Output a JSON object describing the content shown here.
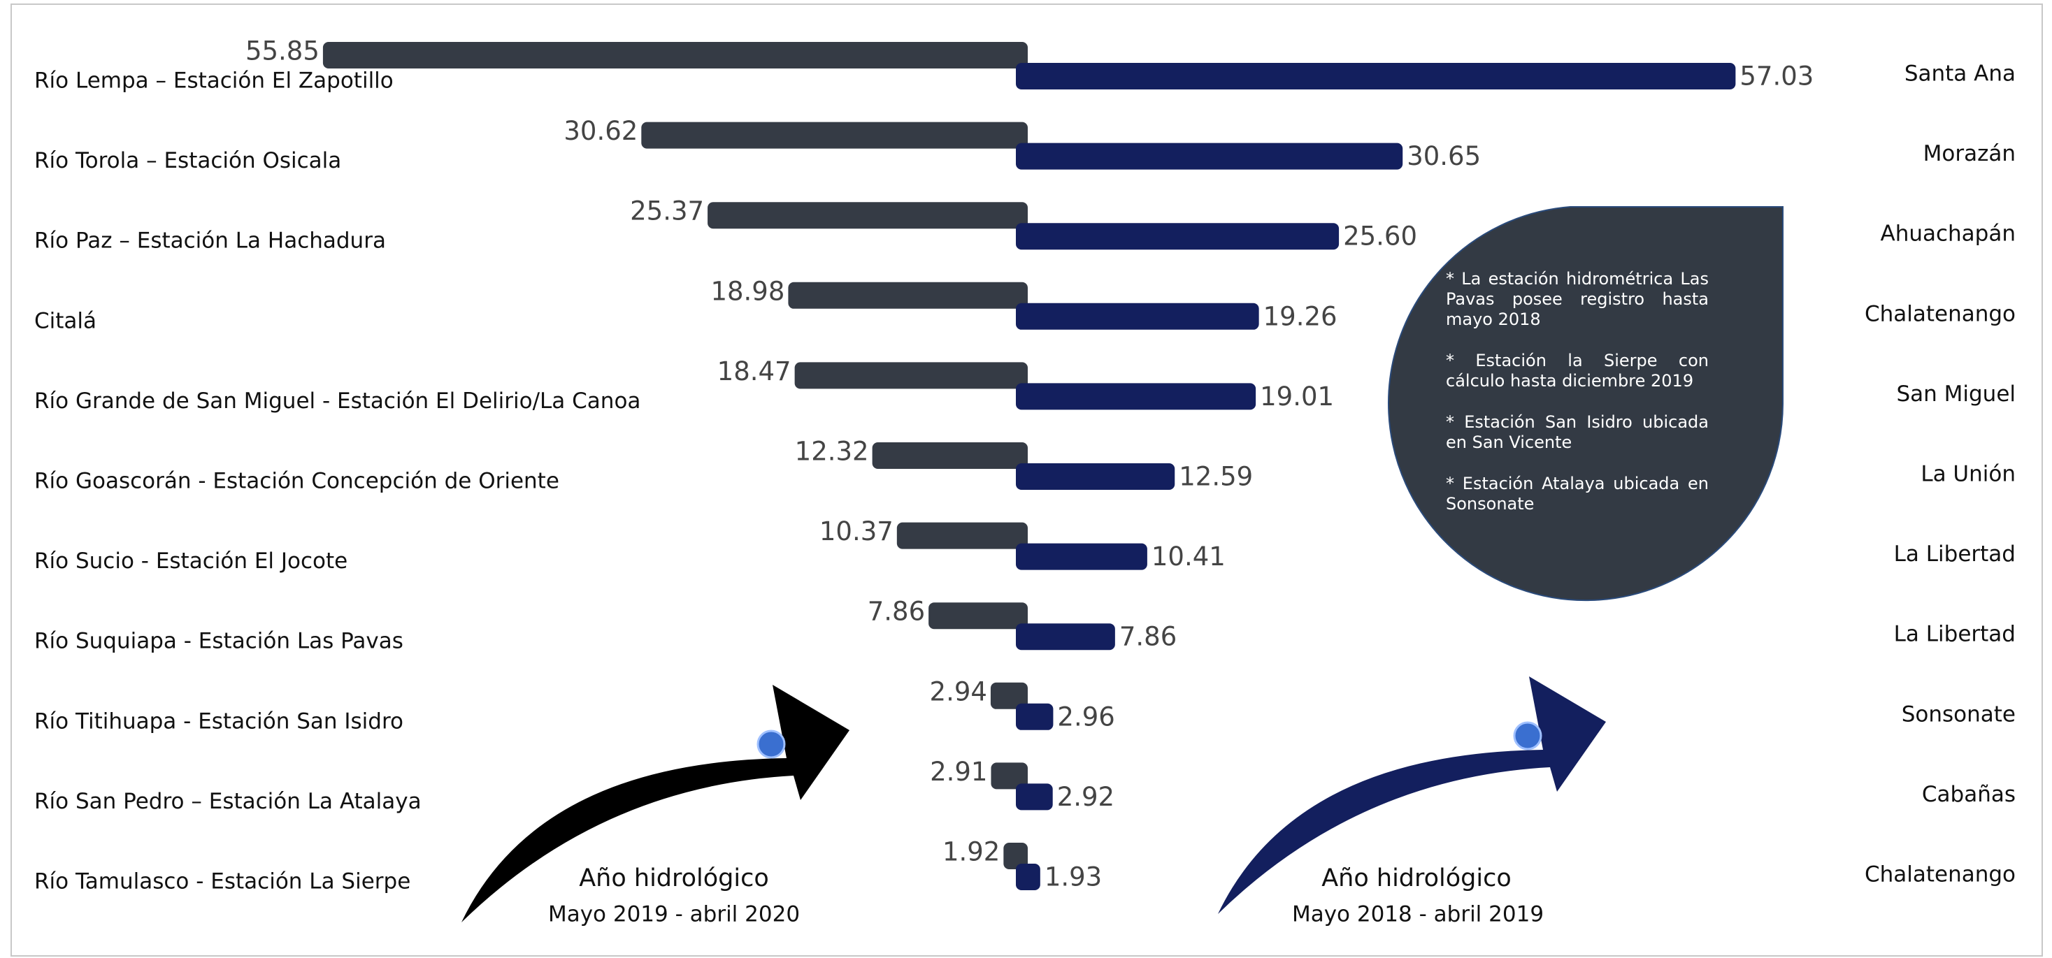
{
  "chart_data": {
    "type": "butterfly-bar",
    "categories": [
      "Río Lempa – Estación El Zapotillo",
      "Río Torola – Estación Osicala",
      "Río Paz – Estación La Hachadura",
      "Citalá",
      "Río Grande de San Miguel - Estación El Delirio/La Canoa",
      "Río Goascorán - Estación Concepción de Oriente",
      "Río Sucio - Estación El Jocote",
      "Río Suquiapa - Estación Las Pavas",
      "Río Titihuapa - Estación San Isidro",
      "Río San Pedro – Estación La Atalaya",
      "Río Tamulasco - Estación La Sierpe"
    ],
    "departments": [
      "Santa Ana",
      "Morazán",
      "Ahuachapán",
      "Chalatenango",
      "San Miguel",
      "La Unión",
      "La Libertad",
      "La Libertad",
      "Sonsonate",
      "Cabañas",
      "Chalatenango"
    ],
    "series": [
      {
        "name": "Mayo 2019 - abril 2020",
        "color": "#353b45",
        "values": [
          55.85,
          30.62,
          25.37,
          18.98,
          18.47,
          12.32,
          10.37,
          7.86,
          2.94,
          2.91,
          1.92
        ],
        "value_labels": [
          "55.85",
          "30.62",
          "25.37",
          "18.98",
          "18.47",
          "12.32",
          "10.37",
          "7.86",
          "2.94",
          "2.91",
          "1.92"
        ]
      },
      {
        "name": "Mayo 2018 - abril 2019",
        "color": "#131f5e",
        "values": [
          57.03,
          30.65,
          25.6,
          19.26,
          19.01,
          12.59,
          10.41,
          7.86,
          2.96,
          2.92,
          1.93
        ],
        "value_labels": [
          "57.03",
          "30.65",
          "25.60",
          "19.26",
          "19.01",
          "12.59",
          "10.41",
          "7.86",
          "2.96",
          "2.92",
          "1.93"
        ]
      }
    ],
    "legend_heading": "Año hidrológico",
    "notes": [
      "* La estación hidrométrica Las Pavas posee registro hasta mayo 2018",
      "* Estación la Sierpe con cálculo hasta diciembre 2019",
      "* Estación San Isidro ubicada en San Vicente",
      "* Estación Atalaya ubicada en Sonsonate"
    ]
  }
}
